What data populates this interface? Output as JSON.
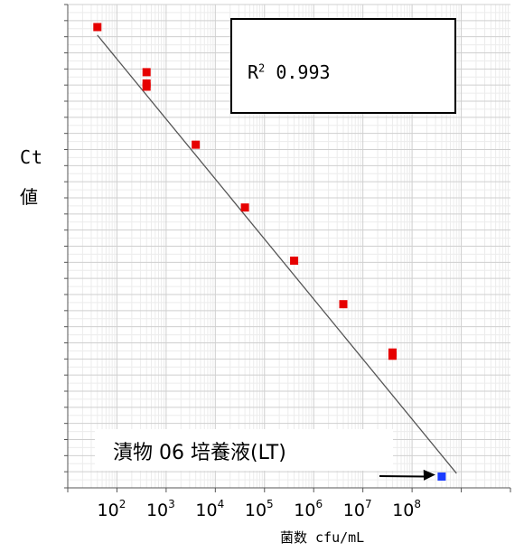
{
  "chart_data": {
    "type": "scatter",
    "ylabel_line1": "Ct",
    "ylabel_line2": "値",
    "xlabel": "菌数 cfu/mL",
    "x_scale": "log",
    "xlim": [
      10,
      10000000000
    ],
    "ylim": [
      12,
      42
    ],
    "grid": true,
    "x_tick_base": "10",
    "x_tick_exponents": [
      "2",
      "3",
      "4",
      "5",
      "6",
      "7",
      "8"
    ],
    "r2_label": "R",
    "r2_sup": "2",
    "r2_value": "0.993",
    "annotation": "漬物 06 培養液(LT)",
    "fit_line": {
      "x": [
        40,
        800000000
      ],
      "y": [
        40.1,
        12.9
      ]
    },
    "points": [
      {
        "x": 40,
        "y": 40.6,
        "color": "#e60000"
      },
      {
        "x": 400,
        "y": 37.8,
        "color": "#e60000"
      },
      {
        "x": 400,
        "y": 37.1,
        "color": "#e60000"
      },
      {
        "x": 400,
        "y": 36.9,
        "color": "#e60000"
      },
      {
        "x": 4000,
        "y": 33.3,
        "color": "#e60000"
      },
      {
        "x": 40000,
        "y": 29.4,
        "color": "#e60000"
      },
      {
        "x": 400000,
        "y": 26.1,
        "color": "#e60000"
      },
      {
        "x": 4000000,
        "y": 23.4,
        "color": "#e60000"
      },
      {
        "x": 40000000,
        "y": 20.4,
        "color": "#e60000"
      },
      {
        "x": 40000000,
        "y": 20.2,
        "color": "#e60000"
      },
      {
        "x": 400000000,
        "y": 12.7,
        "color": "#1a3cff"
      }
    ]
  }
}
